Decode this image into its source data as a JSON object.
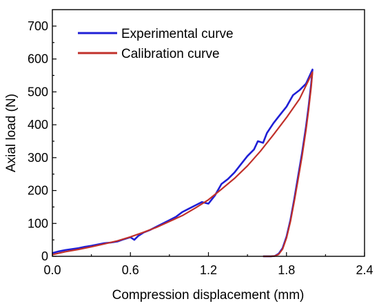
{
  "chart_data": {
    "type": "line",
    "title": "",
    "xlabel": "Compression displacement (mm)",
    "ylabel": "Axial load (N)",
    "xlim": [
      0,
      2.4
    ],
    "ylim": [
      0,
      750
    ],
    "xticks": [
      "0.0",
      "0.6",
      "1.2",
      "1.8",
      "2.4"
    ],
    "xtick_values": [
      0,
      0.6,
      1.2,
      1.8,
      2.4
    ],
    "yticks": [
      "0",
      "100",
      "200",
      "300",
      "400",
      "500",
      "600",
      "700"
    ],
    "ytick_values": [
      0,
      100,
      200,
      300,
      400,
      500,
      600,
      700
    ],
    "grid": false,
    "legend_position": "top-left",
    "series": [
      {
        "name": "Experimental curve",
        "color": "#1f1fd6",
        "x": [
          0.0,
          0.05,
          0.1,
          0.15,
          0.2,
          0.25,
          0.3,
          0.35,
          0.4,
          0.45,
          0.5,
          0.55,
          0.6,
          0.63,
          0.66,
          0.7,
          0.75,
          0.8,
          0.85,
          0.9,
          0.95,
          1.0,
          1.05,
          1.1,
          1.15,
          1.2,
          1.25,
          1.3,
          1.35,
          1.4,
          1.45,
          1.5,
          1.55,
          1.58,
          1.62,
          1.65,
          1.7,
          1.75,
          1.8,
          1.85,
          1.9,
          1.95,
          2.0,
          1.99,
          1.97,
          1.95,
          1.92,
          1.89,
          1.86,
          1.83,
          1.8,
          1.77,
          1.74,
          1.71,
          1.68,
          1.65,
          1.62
        ],
        "y": [
          10,
          15,
          19,
          22,
          25,
          29,
          32,
          36,
          40,
          42,
          45,
          52,
          58,
          50,
          62,
          72,
          80,
          90,
          100,
          110,
          120,
          135,
          145,
          155,
          165,
          160,
          185,
          220,
          235,
          255,
          280,
          305,
          325,
          350,
          345,
          375,
          405,
          430,
          455,
          490,
          505,
          525,
          568,
          525,
          455,
          395,
          315,
          245,
          175,
          110,
          60,
          25,
          8,
          1,
          0,
          0,
          0
        ]
      },
      {
        "name": "Calibration curve",
        "color": "#c0302a",
        "x": [
          0.0,
          0.1,
          0.2,
          0.3,
          0.4,
          0.5,
          0.6,
          0.7,
          0.8,
          0.9,
          1.0,
          1.1,
          1.2,
          1.3,
          1.4,
          1.5,
          1.6,
          1.7,
          1.8,
          1.9,
          2.0,
          1.99,
          1.97,
          1.95,
          1.92,
          1.89,
          1.86,
          1.83,
          1.8,
          1.77,
          1.74,
          1.71,
          1.68,
          1.65,
          1.62
        ],
        "y": [
          5,
          14,
          21,
          29,
          38,
          47,
          59,
          73,
          88,
          106,
          124,
          147,
          172,
          204,
          237,
          275,
          320,
          370,
          422,
          478,
          560,
          515,
          445,
          385,
          305,
          235,
          168,
          105,
          56,
          22,
          6,
          1,
          0,
          0,
          0
        ]
      }
    ]
  }
}
